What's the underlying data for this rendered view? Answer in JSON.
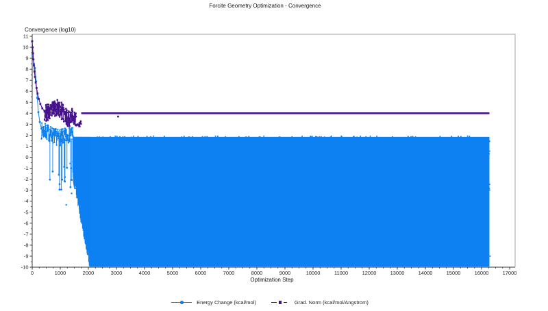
{
  "header": {
    "title": "Forcite Geometry Optimization - Convergence"
  },
  "chart_data": {
    "type": "scatter",
    "title": "Forcite Geometry Optimization - Convergence",
    "xlabel": "Optimization Step",
    "ylabel": "Convergence (log10)",
    "xlim": [
      0,
      17000
    ],
    "ylim": [
      -10,
      11
    ],
    "x_major_tick": 1000,
    "x_minor_tick": 250,
    "y_major_tick": 1,
    "y_minor_tick": 0.5,
    "grid": false,
    "legend_position": "bottom-center",
    "axis_color": "#3a3a3a",
    "frame_color": "#a6a6a6",
    "tick_label_color": "#222222",
    "series": [
      {
        "name": "Energy Change (kcal/mol)",
        "color": "#0d80f2",
        "marker": "circle",
        "line_style": "solid",
        "summary": {
          "initial_points": [
            [
              10,
              9.3
            ],
            [
              60,
              8.5
            ],
            [
              100,
              8.1
            ],
            [
              140,
              6.9
            ],
            [
              180,
              5.4
            ],
            [
              220,
              4.1
            ],
            [
              270,
              3.2
            ],
            [
              330,
              2.6
            ]
          ],
          "noisy_band": {
            "x0": 330,
            "x1": 1460,
            "mean": 2.1,
            "spread": 0.75
          },
          "down_spikes": {
            "x0": 550,
            "x1": 1560,
            "count": 14,
            "min_depth": -0.5,
            "max_depth": -3.4
          },
          "collapse_ramp": {
            "x0": 1450,
            "x1": 2060,
            "top": 1.85,
            "from": -1.5,
            "to": -9.95
          },
          "dense_block": {
            "x0": 2050,
            "x1": 16280,
            "top": 1.85,
            "bottom": -9.95
          }
        }
      },
      {
        "name": "Grad. Norm (kcal/mol/Angstrom)",
        "color": "#45118e",
        "marker": "square",
        "line_style": "dash-dot",
        "summary": {
          "initial_points": [
            [
              0,
              10.55
            ],
            [
              15,
              10.0
            ],
            [
              30,
              9.45
            ],
            [
              45,
              8.9
            ],
            [
              60,
              8.35
            ],
            [
              80,
              7.8
            ],
            [
              100,
              7.3
            ],
            [
              125,
              6.8
            ],
            [
              155,
              6.3
            ],
            [
              190,
              5.8
            ],
            [
              235,
              5.3
            ],
            [
              290,
              4.85
            ],
            [
              360,
              4.45
            ],
            [
              440,
              4.15
            ]
          ],
          "noisy_band": {
            "x0": 440,
            "x1": 1560,
            "mean": 4.05,
            "spread": 0.85
          },
          "dip": {
            "x0": 1560,
            "x1": 1745,
            "value": 3.05,
            "spread": 0.25
          },
          "flat_line": {
            "x0": 1745,
            "x1": 16280,
            "value": 4.0
          },
          "outliers": [
            [
              3060,
              3.7
            ]
          ]
        }
      }
    ]
  },
  "legend": {
    "items": [
      {
        "label": "Energy Change (kcal/mol)",
        "color": "#0d80f2",
        "marker": "line-circle"
      },
      {
        "label": "Grad. Norm (kcal/mol/Angstrom)",
        "color": "#45118e",
        "marker": "dash-square"
      }
    ]
  }
}
